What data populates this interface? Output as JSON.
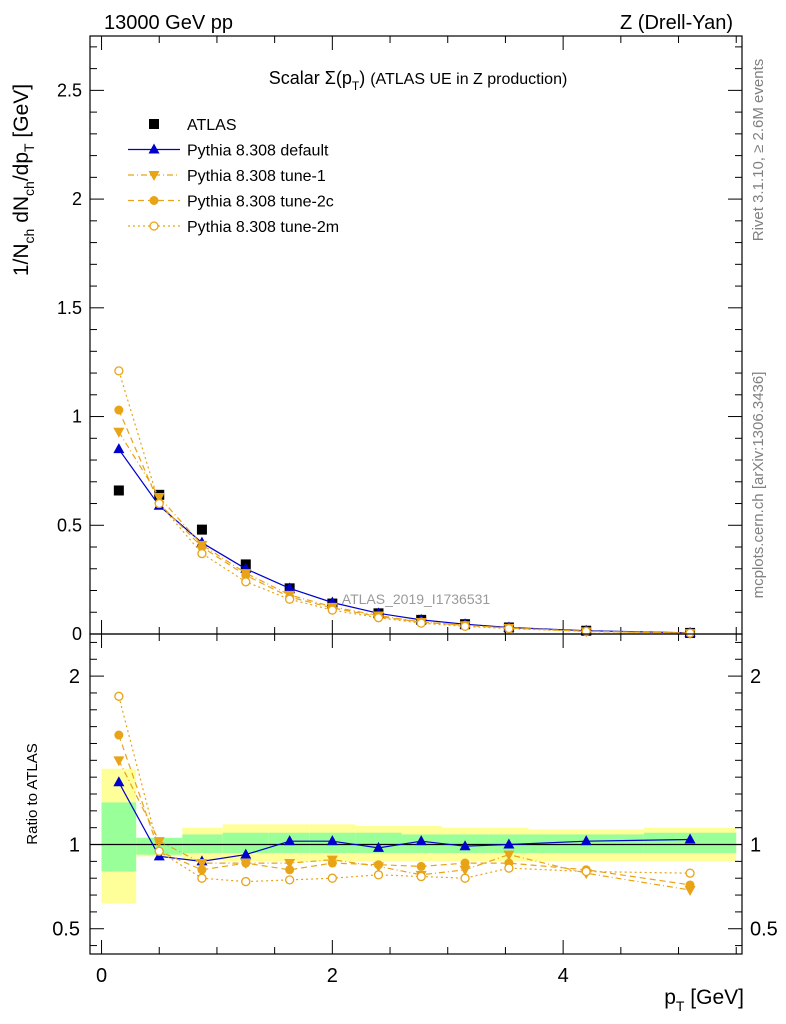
{
  "header": {
    "left": "13000 GeV pp",
    "right": "Z (Drell-Yan)"
  },
  "side": {
    "rivet": "Rivet 3.1.10, ≥ 2.6M events",
    "mcplots": "mcplots.cern.ch [arXiv:1306.3436]"
  },
  "plot_title": {
    "main": "Scalar Σ(p",
    "sub": "T",
    "close": ")",
    "rest": "(ATLAS UE in Z production)"
  },
  "watermark": "ATLAS_2019_I1736531",
  "colors": {
    "atlas": "#000000",
    "default": "#0000cc",
    "tunes": "#e8a317",
    "band_inner": "#99ff99",
    "band_outer": "#ffff99"
  },
  "chart_data": [
    {
      "type": "scatter",
      "panel": "main",
      "ylabel": "1/N_ch dN_ch/dp_T [GeV]",
      "ylim": [
        0,
        2.75
      ],
      "xlim": [
        -0.1,
        5.55
      ],
      "yticks": [
        "0",
        "0.5",
        "1",
        "1.5",
        "2",
        "2.5"
      ],
      "x": [
        0.15,
        0.5,
        0.87,
        1.25,
        1.63,
        2.0,
        2.4,
        2.77,
        3.15,
        3.53,
        4.2,
        5.1
      ],
      "series": [
        {
          "name": "ATLAS",
          "marker": "filled-square",
          "values": [
            0.66,
            0.64,
            0.48,
            0.32,
            0.21,
            0.14,
            0.095,
            0.065,
            0.045,
            0.03,
            0.015,
            0.005
          ]
        },
        {
          "name": "Pythia 8.308 default",
          "marker": "filled-triangle",
          "line": "solid",
          "values": [
            0.85,
            0.59,
            0.42,
            0.3,
            0.21,
            0.145,
            0.095,
            0.065,
            0.045,
            0.03,
            0.015,
            0.005
          ]
        },
        {
          "name": "Pythia 8.308 tune-1",
          "marker": "filled-triangle-down",
          "line": "dash-dot",
          "values": [
            0.93,
            0.63,
            0.41,
            0.28,
            0.18,
            0.125,
            0.085,
            0.055,
            0.04,
            0.028,
            0.012,
            0.004
          ]
        },
        {
          "name": "Pythia 8.308 tune-2c",
          "marker": "filled-circle",
          "line": "dashed",
          "values": [
            1.03,
            0.6,
            0.4,
            0.27,
            0.17,
            0.12,
            0.08,
            0.055,
            0.04,
            0.027,
            0.013,
            0.004
          ]
        },
        {
          "name": "Pythia 8.308 tune-2m",
          "marker": "open-circle",
          "line": "dotted",
          "values": [
            1.21,
            0.6,
            0.37,
            0.24,
            0.16,
            0.11,
            0.075,
            0.05,
            0.035,
            0.025,
            0.012,
            0.004
          ]
        }
      ]
    },
    {
      "type": "scatter",
      "panel": "ratio",
      "ylabel": "Ratio to ATLAS",
      "xlabel": "p_T [GeV]",
      "ylim": [
        0.35,
        2.25
      ],
      "xlim": [
        -0.1,
        5.55
      ],
      "yticks": [
        "0.5",
        "1",
        "2"
      ],
      "xticks": [
        "0",
        "2",
        "4"
      ],
      "bands": {
        "edges": [
          0.0,
          0.3,
          0.7,
          1.05,
          1.45,
          1.8,
          2.2,
          2.6,
          2.95,
          3.35,
          3.7,
          4.7,
          5.5
        ],
        "inner": [
          [
            0.84,
            1.25
          ],
          [
            0.94,
            1.04
          ],
          [
            0.95,
            1.06
          ],
          [
            0.95,
            1.07
          ],
          [
            0.95,
            1.07
          ],
          [
            0.95,
            1.07
          ],
          [
            0.95,
            1.07
          ],
          [
            0.95,
            1.06
          ],
          [
            0.95,
            1.06
          ],
          [
            0.95,
            1.06
          ],
          [
            0.95,
            1.06
          ],
          [
            0.95,
            1.07
          ]
        ],
        "outer": [
          [
            0.65,
            1.45
          ],
          [
            0.93,
            1.04
          ],
          [
            0.91,
            1.1
          ],
          [
            0.9,
            1.12
          ],
          [
            0.9,
            1.12
          ],
          [
            0.9,
            1.12
          ],
          [
            0.9,
            1.11
          ],
          [
            0.9,
            1.11
          ],
          [
            0.9,
            1.1
          ],
          [
            0.9,
            1.1
          ],
          [
            0.9,
            1.09
          ],
          [
            0.9,
            1.1
          ]
        ]
      },
      "x": [
        0.15,
        0.5,
        0.87,
        1.25,
        1.63,
        2.0,
        2.4,
        2.77,
        3.15,
        3.53,
        4.2,
        5.1
      ],
      "series": [
        {
          "name": "Pythia 8.308 default",
          "values": [
            1.37,
            0.93,
            0.9,
            0.94,
            1.02,
            1.02,
            0.98,
            1.02,
            0.99,
            1.0,
            1.02,
            1.03
          ]
        },
        {
          "name": "Pythia 8.308 tune-1",
          "values": [
            1.5,
            1.02,
            0.89,
            0.89,
            0.89,
            0.91,
            0.87,
            0.82,
            0.85,
            0.94,
            0.83,
            0.73
          ]
        },
        {
          "name": "Pythia 8.308 tune-2c",
          "values": [
            1.65,
            0.96,
            0.85,
            0.89,
            0.85,
            0.89,
            0.88,
            0.87,
            0.89,
            0.89,
            0.85,
            0.76
          ]
        },
        {
          "name": "Pythia 8.308 tune-2m",
          "values": [
            1.88,
            0.96,
            0.8,
            0.78,
            0.79,
            0.8,
            0.82,
            0.81,
            0.8,
            0.86,
            0.84,
            0.83
          ]
        }
      ]
    }
  ]
}
